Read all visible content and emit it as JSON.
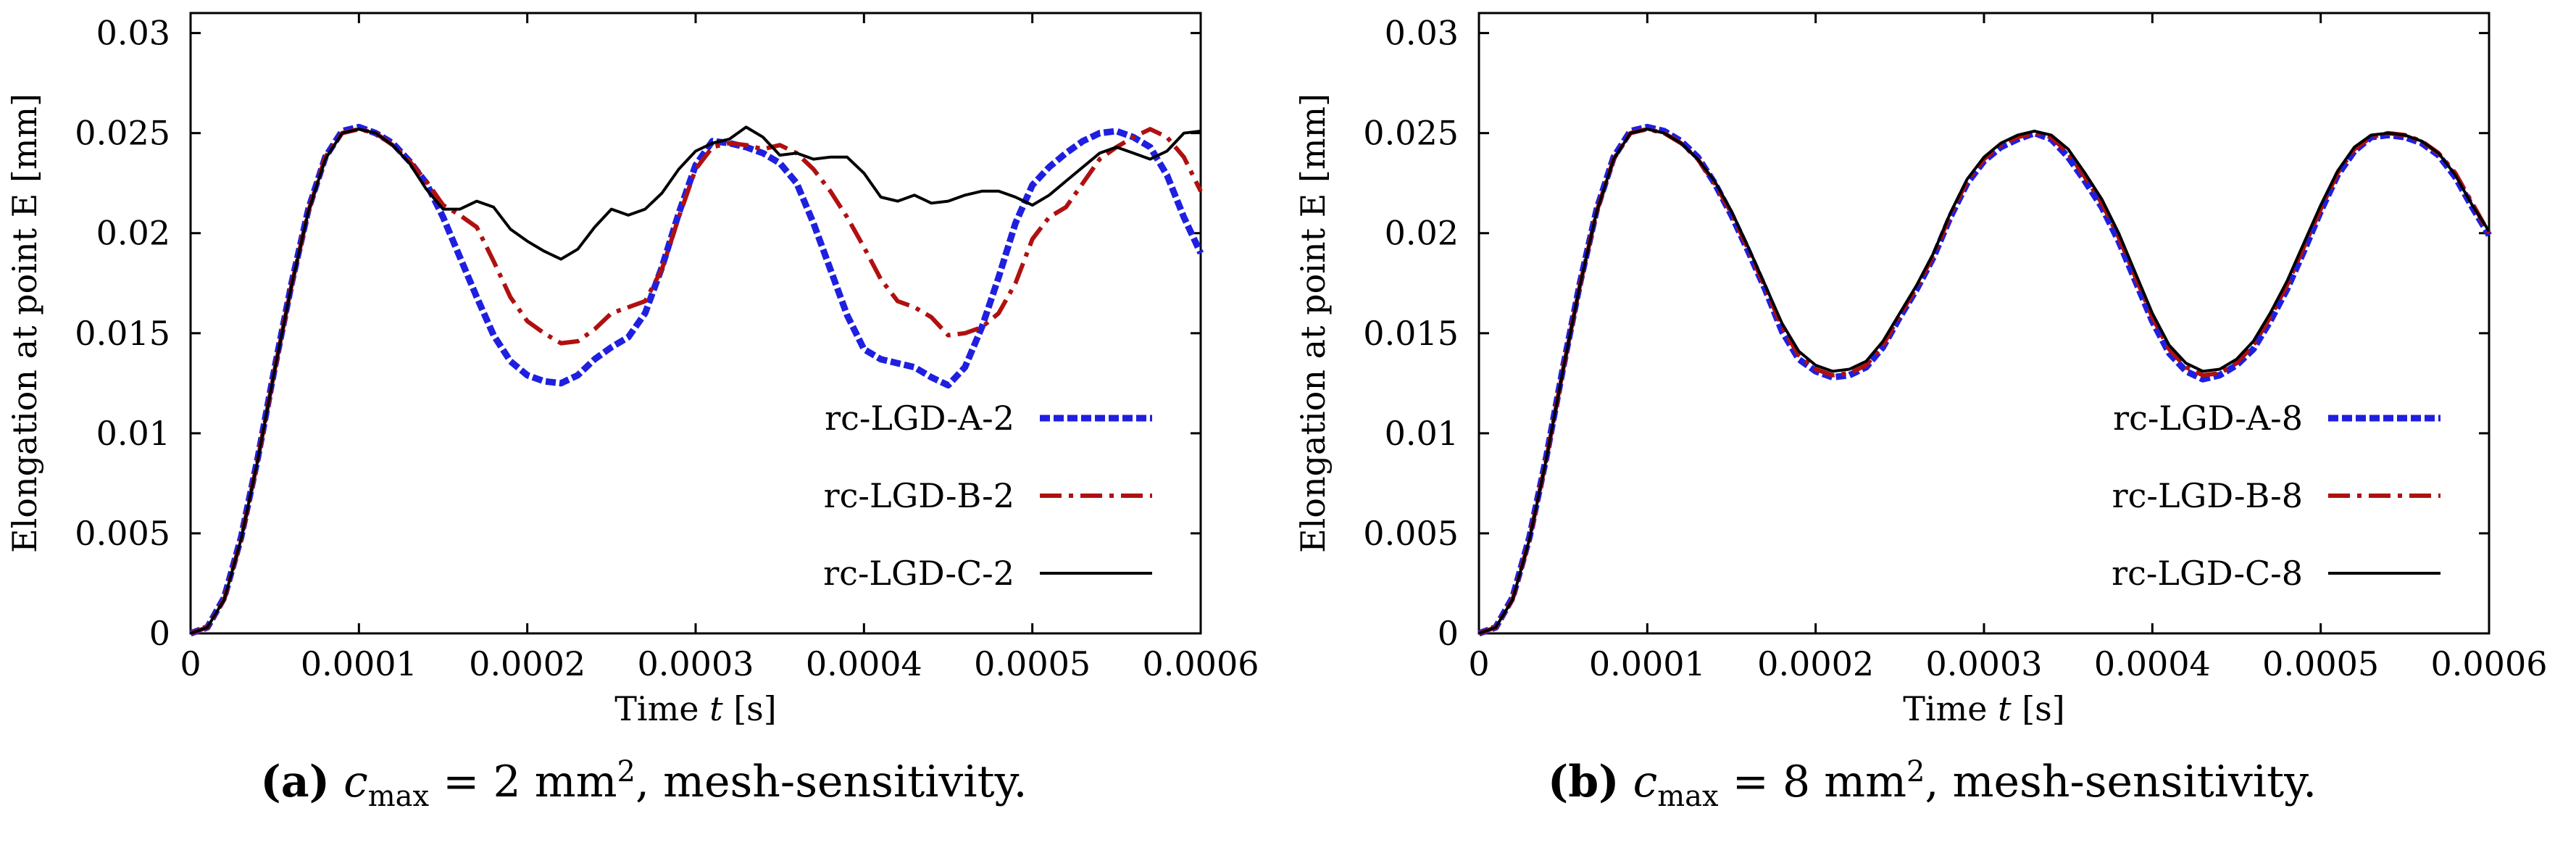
{
  "chart_data": [
    {
      "type": "line",
      "panel_label": "(a)",
      "caption": {
        "symbol": "c",
        "subscript": "max",
        "equation": " = 2 mm",
        "superscript": "2",
        "suffix": ", mesh-sensitivity."
      },
      "xlabel": {
        "prefix": "Time ",
        "var": "t",
        "suffix": " [s]"
      },
      "ylabel": "Elongation at point E [mm]",
      "xlim": [
        0,
        0.0006
      ],
      "ylim": [
        0,
        0.031
      ],
      "x_ticks": [
        0,
        0.0001,
        0.0002,
        0.0003,
        0.0004,
        0.0005,
        0.0006
      ],
      "x_tick_labels": [
        "0",
        "0.0001",
        "0.0002",
        "0.0003",
        "0.0004",
        "0.0005",
        "0.0006"
      ],
      "y_ticks": [
        0,
        0.005,
        0.01,
        0.015,
        0.02,
        0.025,
        0.03
      ],
      "y_tick_labels": [
        "0",
        "0.005",
        "0.01",
        "0.015",
        "0.02",
        "0.025",
        "0.03"
      ],
      "legend_position": "bottom-right",
      "series": [
        {
          "name": "rc-LGD-A-2",
          "color": "#1f1fe0",
          "style": "dotted",
          "x": [
            0,
            1e-05,
            2e-05,
            3e-05,
            4e-05,
            5e-05,
            6e-05,
            7e-05,
            8e-05,
            9e-05,
            0.0001,
            0.00011,
            0.00012,
            0.00013,
            0.00014,
            0.00015,
            0.00016,
            0.00017,
            0.00018,
            0.00019,
            0.0002,
            0.00021,
            0.00022,
            0.00023,
            0.00024,
            0.00025,
            0.00026,
            0.00027,
            0.00028,
            0.00029,
            0.0003,
            0.00031,
            0.00032,
            0.00033,
            0.00034,
            0.00035,
            0.00036,
            0.00037,
            0.00038,
            0.00039,
            0.0004,
            0.00041,
            0.00042,
            0.00043,
            0.00044,
            0.00045,
            0.00046,
            0.00047,
            0.00048,
            0.00049,
            0.0005,
            0.00051,
            0.00052,
            0.00053,
            0.00054,
            0.00055,
            0.00056,
            0.00057,
            0.00058,
            0.00059,
            0.0006
          ],
          "y": [
            0,
            0.0003,
            0.0018,
            0.0048,
            0.0088,
            0.0133,
            0.0175,
            0.0212,
            0.0238,
            0.0251,
            0.0253,
            0.025,
            0.0245,
            0.0236,
            0.0225,
            0.0208,
            0.0188,
            0.0168,
            0.0149,
            0.0136,
            0.0129,
            0.0126,
            0.0125,
            0.0129,
            0.0137,
            0.0143,
            0.0148,
            0.016,
            0.0183,
            0.021,
            0.0234,
            0.0246,
            0.0245,
            0.0243,
            0.024,
            0.0235,
            0.0225,
            0.0205,
            0.0182,
            0.0159,
            0.0142,
            0.0137,
            0.0135,
            0.0133,
            0.0128,
            0.0124,
            0.0133,
            0.0153,
            0.0178,
            0.0205,
            0.0224,
            0.0233,
            0.024,
            0.0246,
            0.025,
            0.0251,
            0.0248,
            0.0243,
            0.0229,
            0.0208,
            0.019
          ]
        },
        {
          "name": "rc-LGD-B-2",
          "color": "#b01010",
          "style": "dashdot",
          "x": [
            0,
            1e-05,
            2e-05,
            3e-05,
            4e-05,
            5e-05,
            6e-05,
            7e-05,
            8e-05,
            9e-05,
            0.0001,
            0.00011,
            0.00012,
            0.00013,
            0.00014,
            0.00015,
            0.00016,
            0.00017,
            0.00018,
            0.00019,
            0.0002,
            0.00021,
            0.00022,
            0.00023,
            0.00024,
            0.00025,
            0.00026,
            0.00027,
            0.00028,
            0.00029,
            0.0003,
            0.00031,
            0.00032,
            0.00033,
            0.00034,
            0.00035,
            0.00036,
            0.00037,
            0.00038,
            0.00039,
            0.0004,
            0.00041,
            0.00042,
            0.00043,
            0.00044,
            0.00045,
            0.00046,
            0.00047,
            0.00048,
            0.00049,
            0.0005,
            0.00051,
            0.00052,
            0.00053,
            0.00054,
            0.00055,
            0.00056,
            0.00057,
            0.00058,
            0.00059,
            0.0006
          ],
          "y": [
            0,
            0.0003,
            0.0017,
            0.0047,
            0.0087,
            0.0132,
            0.0174,
            0.0211,
            0.0238,
            0.025,
            0.0252,
            0.025,
            0.0244,
            0.0236,
            0.0226,
            0.0214,
            0.0209,
            0.0203,
            0.0186,
            0.0168,
            0.0156,
            0.015,
            0.0145,
            0.0146,
            0.0152,
            0.016,
            0.0163,
            0.0166,
            0.0182,
            0.0208,
            0.0232,
            0.0243,
            0.0245,
            0.0244,
            0.0242,
            0.0244,
            0.024,
            0.0232,
            0.0221,
            0.0208,
            0.0193,
            0.0177,
            0.0166,
            0.0163,
            0.0158,
            0.0149,
            0.015,
            0.0153,
            0.016,
            0.0175,
            0.0197,
            0.0208,
            0.0213,
            0.0225,
            0.0237,
            0.0243,
            0.0248,
            0.0252,
            0.0248,
            0.0238,
            0.0221
          ]
        },
        {
          "name": "rc-LGD-C-2",
          "color": "#000000",
          "style": "solid",
          "x": [
            0,
            1e-05,
            2e-05,
            3e-05,
            4e-05,
            5e-05,
            6e-05,
            7e-05,
            8e-05,
            9e-05,
            0.0001,
            0.00011,
            0.00012,
            0.00013,
            0.00014,
            0.00015,
            0.00016,
            0.00017,
            0.00018,
            0.00019,
            0.0002,
            0.00021,
            0.00022,
            0.00023,
            0.00024,
            0.00025,
            0.00026,
            0.00027,
            0.00028,
            0.00029,
            0.0003,
            0.00031,
            0.00032,
            0.00033,
            0.00034,
            0.00035,
            0.00036,
            0.00037,
            0.00038,
            0.00039,
            0.0004,
            0.00041,
            0.00042,
            0.00043,
            0.00044,
            0.00045,
            0.00046,
            0.00047,
            0.00048,
            0.00049,
            0.0005,
            0.00051,
            0.00052,
            0.00053,
            0.00054,
            0.00055,
            0.00056,
            0.00057,
            0.00058,
            0.00059,
            0.0006
          ],
          "y": [
            0,
            0.0003,
            0.0017,
            0.0047,
            0.0087,
            0.0132,
            0.0174,
            0.0211,
            0.0237,
            0.025,
            0.0252,
            0.025,
            0.0244,
            0.0235,
            0.0222,
            0.0212,
            0.0212,
            0.0216,
            0.0213,
            0.0202,
            0.0196,
            0.0191,
            0.0187,
            0.0192,
            0.0203,
            0.0212,
            0.0209,
            0.0212,
            0.022,
            0.0232,
            0.0241,
            0.0245,
            0.0247,
            0.0253,
            0.0248,
            0.0239,
            0.024,
            0.0237,
            0.0238,
            0.0238,
            0.023,
            0.0218,
            0.0216,
            0.0219,
            0.0215,
            0.0216,
            0.0219,
            0.0221,
            0.0221,
            0.0218,
            0.0214,
            0.0219,
            0.0226,
            0.0233,
            0.024,
            0.0243,
            0.024,
            0.0237,
            0.0241,
            0.025,
            0.0251
          ]
        }
      ]
    },
    {
      "type": "line",
      "panel_label": "(b)",
      "caption": {
        "symbol": "c",
        "subscript": "max",
        "equation": " = 8 mm",
        "superscript": "2",
        "suffix": ", mesh-sensitivity."
      },
      "xlabel": {
        "prefix": "Time ",
        "var": "t",
        "suffix": " [s]"
      },
      "ylabel": "Elongation at point E [mm]",
      "xlim": [
        0,
        0.0006
      ],
      "ylim": [
        0,
        0.031
      ],
      "x_ticks": [
        0,
        0.0001,
        0.0002,
        0.0003,
        0.0004,
        0.0005,
        0.0006
      ],
      "x_tick_labels": [
        "0",
        "0.0001",
        "0.0002",
        "0.0003",
        "0.0004",
        "0.0005",
        "0.0006"
      ],
      "y_ticks": [
        0,
        0.005,
        0.01,
        0.015,
        0.02,
        0.025,
        0.03
      ],
      "y_tick_labels": [
        "0",
        "0.005",
        "0.01",
        "0.015",
        "0.02",
        "0.025",
        "0.03"
      ],
      "legend_position": "bottom-right",
      "series": [
        {
          "name": "rc-LGD-A-8",
          "color": "#1f1fe0",
          "style": "dotted",
          "x": [
            0,
            1e-05,
            2e-05,
            3e-05,
            4e-05,
            5e-05,
            6e-05,
            7e-05,
            8e-05,
            9e-05,
            0.0001,
            0.00011,
            0.00012,
            0.00013,
            0.00014,
            0.00015,
            0.00016,
            0.00017,
            0.00018,
            0.00019,
            0.0002,
            0.00021,
            0.00022,
            0.00023,
            0.00024,
            0.00025,
            0.00026,
            0.00027,
            0.00028,
            0.00029,
            0.0003,
            0.00031,
            0.00032,
            0.00033,
            0.00034,
            0.00035,
            0.00036,
            0.00037,
            0.00038,
            0.00039,
            0.0004,
            0.00041,
            0.00042,
            0.00043,
            0.00044,
            0.00045,
            0.00046,
            0.00047,
            0.00048,
            0.00049,
            0.0005,
            0.00051,
            0.00052,
            0.00053,
            0.00054,
            0.00055,
            0.00056,
            0.00057,
            0.00058,
            0.00059,
            0.0006
          ],
          "y": [
            0,
            0.0003,
            0.0018,
            0.0048,
            0.0088,
            0.0133,
            0.0175,
            0.0212,
            0.0238,
            0.0251,
            0.0253,
            0.0251,
            0.0246,
            0.0238,
            0.0225,
            0.0209,
            0.0191,
            0.0172,
            0.0151,
            0.0137,
            0.0131,
            0.0128,
            0.0129,
            0.0133,
            0.0143,
            0.0158,
            0.0172,
            0.0188,
            0.0208,
            0.0225,
            0.0236,
            0.0243,
            0.0247,
            0.025,
            0.0247,
            0.0238,
            0.0226,
            0.0213,
            0.0196,
            0.0176,
            0.0156,
            0.014,
            0.0131,
            0.0127,
            0.0129,
            0.0134,
            0.0142,
            0.0156,
            0.0172,
            0.0191,
            0.0211,
            0.0229,
            0.0241,
            0.0248,
            0.0249,
            0.0248,
            0.0245,
            0.0239,
            0.0228,
            0.0213,
            0.0199
          ]
        },
        {
          "name": "rc-LGD-B-8",
          "color": "#b01010",
          "style": "dashdot",
          "x": [
            0,
            1e-05,
            2e-05,
            3e-05,
            4e-05,
            5e-05,
            6e-05,
            7e-05,
            8e-05,
            9e-05,
            0.0001,
            0.00011,
            0.00012,
            0.00013,
            0.00014,
            0.00015,
            0.00016,
            0.00017,
            0.00018,
            0.00019,
            0.0002,
            0.00021,
            0.00022,
            0.00023,
            0.00024,
            0.00025,
            0.00026,
            0.00027,
            0.00028,
            0.00029,
            0.0003,
            0.00031,
            0.00032,
            0.00033,
            0.00034,
            0.00035,
            0.00036,
            0.00037,
            0.00038,
            0.00039,
            0.0004,
            0.00041,
            0.00042,
            0.00043,
            0.00044,
            0.00045,
            0.00046,
            0.00047,
            0.00048,
            0.00049,
            0.0005,
            0.00051,
            0.00052,
            0.00053,
            0.00054,
            0.00055,
            0.00056,
            0.00057,
            0.00058,
            0.00059,
            0.0006
          ],
          "y": [
            0,
            0.0003,
            0.0017,
            0.0047,
            0.0087,
            0.0132,
            0.0174,
            0.0211,
            0.0237,
            0.025,
            0.0252,
            0.025,
            0.0245,
            0.0237,
            0.0225,
            0.021,
            0.0192,
            0.0173,
            0.0153,
            0.0139,
            0.0132,
            0.0129,
            0.013,
            0.0134,
            0.0144,
            0.0159,
            0.0173,
            0.0189,
            0.0209,
            0.0226,
            0.0237,
            0.0244,
            0.0248,
            0.025,
            0.0248,
            0.024,
            0.0228,
            0.0215,
            0.0198,
            0.0178,
            0.0158,
            0.0142,
            0.0133,
            0.0129,
            0.013,
            0.0135,
            0.0144,
            0.0158,
            0.0174,
            0.0193,
            0.0212,
            0.023,
            0.0242,
            0.0248,
            0.025,
            0.0249,
            0.0246,
            0.024,
            0.023,
            0.0215,
            0.02
          ]
        },
        {
          "name": "rc-LGD-C-8",
          "color": "#000000",
          "style": "solid",
          "x": [
            0,
            1e-05,
            2e-05,
            3e-05,
            4e-05,
            5e-05,
            6e-05,
            7e-05,
            8e-05,
            9e-05,
            0.0001,
            0.00011,
            0.00012,
            0.00013,
            0.00014,
            0.00015,
            0.00016,
            0.00017,
            0.00018,
            0.00019,
            0.0002,
            0.00021,
            0.00022,
            0.00023,
            0.00024,
            0.00025,
            0.00026,
            0.00027,
            0.00028,
            0.00029,
            0.0003,
            0.00031,
            0.00032,
            0.00033,
            0.00034,
            0.00035,
            0.00036,
            0.00037,
            0.00038,
            0.00039,
            0.0004,
            0.00041,
            0.00042,
            0.00043,
            0.00044,
            0.00045,
            0.00046,
            0.00047,
            0.00048,
            0.00049,
            0.0005,
            0.00051,
            0.00052,
            0.00053,
            0.00054,
            0.00055,
            0.00056,
            0.00057,
            0.00058,
            0.00059,
            0.0006
          ],
          "y": [
            0,
            0.0003,
            0.0017,
            0.0047,
            0.0087,
            0.0132,
            0.0174,
            0.0211,
            0.0237,
            0.025,
            0.0252,
            0.025,
            0.0245,
            0.0237,
            0.0226,
            0.0211,
            0.0193,
            0.0174,
            0.0155,
            0.0141,
            0.0134,
            0.0131,
            0.0132,
            0.0136,
            0.0146,
            0.016,
            0.0174,
            0.019,
            0.021,
            0.0227,
            0.0238,
            0.0245,
            0.0249,
            0.0251,
            0.0249,
            0.0242,
            0.023,
            0.0217,
            0.02,
            0.018,
            0.016,
            0.0144,
            0.0135,
            0.0131,
            0.0132,
            0.0137,
            0.0146,
            0.016,
            0.0176,
            0.0195,
            0.0214,
            0.0231,
            0.0243,
            0.0249,
            0.025,
            0.0249,
            0.0246,
            0.024,
            0.0229,
            0.0214,
            0.0201
          ]
        }
      ]
    }
  ]
}
